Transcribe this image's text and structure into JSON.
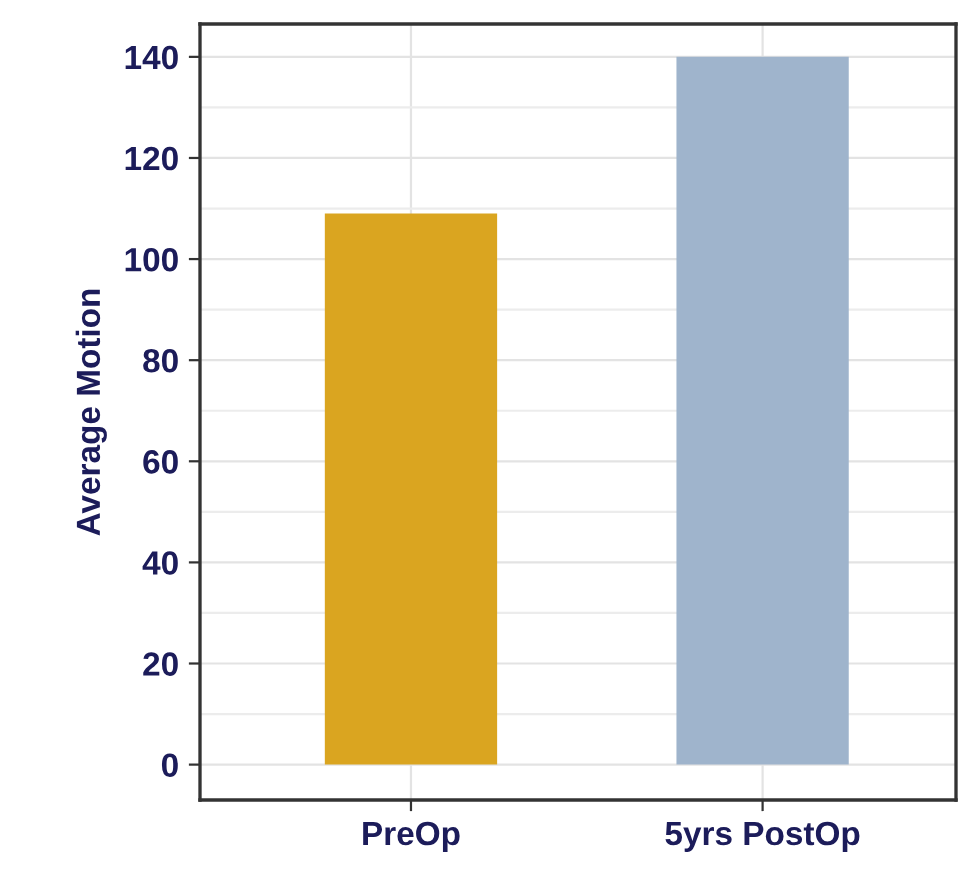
{
  "chart_data": {
    "type": "bar",
    "ylabel": "Average Motion",
    "categories": [
      "PreOp",
      "5yrs PostOp"
    ],
    "values": [
      109,
      140
    ],
    "colors": [
      "#daa520",
      "#9fb4cc"
    ],
    "ylim": [
      -7,
      146.5
    ],
    "yticks": [
      0,
      20,
      40,
      60,
      80,
      100,
      120,
      140
    ],
    "grid": true
  }
}
